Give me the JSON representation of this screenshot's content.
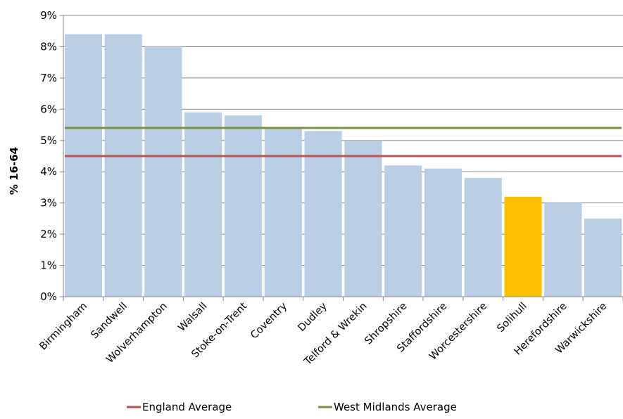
{
  "chart_data": {
    "type": "bar",
    "categories": [
      "Birmingham",
      "Sandwell",
      "Wolverhampton",
      "Walsall",
      "Stoke-on-Trent",
      "Coventry",
      "Dudley",
      "Telford & Wrekin",
      "Shropshire",
      "Staffordshire",
      "Worcestershire",
      "Solihull",
      "Herefordshire",
      "Warwickshire"
    ],
    "values": [
      8.4,
      8.4,
      8.0,
      5.9,
      5.8,
      5.4,
      5.3,
      5.0,
      4.2,
      4.1,
      3.8,
      3.2,
      3.0,
      2.5
    ],
    "bar_colors": [
      "#b9cde5",
      "#b9cde5",
      "#b9cde5",
      "#b9cde5",
      "#b9cde5",
      "#b9cde5",
      "#b9cde5",
      "#b9cde5",
      "#b9cde5",
      "#b9cde5",
      "#b9cde5",
      "#ffc000",
      "#b9cde5",
      "#b9cde5"
    ],
    "reference_lines": [
      {
        "name": "England Average",
        "value": 4.5,
        "color": "#c0504d"
      },
      {
        "name": "West Midlands Average",
        "value": 5.4,
        "color": "#77933c"
      }
    ],
    "ylabel": "% 16-64",
    "ylim": [
      0,
      9
    ],
    "yticks": [
      "0%",
      "1%",
      "2%",
      "3%",
      "4%",
      "5%",
      "6%",
      "7%",
      "8%",
      "9%"
    ],
    "grid": true,
    "legend_position": "bottom"
  }
}
